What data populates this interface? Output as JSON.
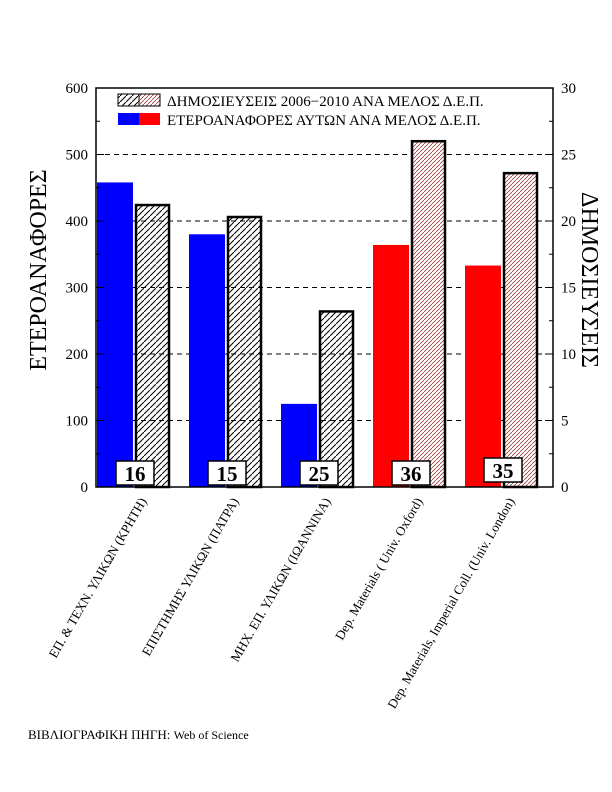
{
  "chart_data": {
    "type": "bar",
    "categories": [
      "ΕΠ. & ΤΕΧΝ. ΥΛΙΚΩΝ (ΚΡΗΤΗ)",
      "ΕΠΙΣΤΗΜΗΣ ΥΛΙΚΩΝ (ΠΑΤΡΑ)",
      "ΜΗΧ. ΕΠ. ΥΛΙΚΩΝ (ΙΩΑΝΝΙΝΑ)",
      "Dep. Materials ( Univ. Oxford)",
      "Dep. Materials, Imperial Coll. (Univ. London)"
    ],
    "series": [
      {
        "name": "ΕΤΕΡΟΑΝΑΦΟΡΕΣ ΑΥΤΩΝ ΑΝΑ ΜΕΛΟΣ Δ.Ε.Π.",
        "axis": "left",
        "values": [
          458,
          380,
          125,
          364,
          333
        ],
        "colors": [
          "#0000ff",
          "#0000ff",
          "#0000ff",
          "#ff0000",
          "#ff0000"
        ]
      },
      {
        "name": "ΔΗΜΟΣΙΕΥΣΕΙΣ 2006−2010 ΑΝΑ ΜΕΛΟΣ Δ.Ε.Π.",
        "axis": "right",
        "values": [
          21.2,
          20.3,
          13.2,
          26.0,
          23.6
        ],
        "hatch_colors": [
          "#000000",
          "#000000",
          "#000000",
          "#a04040",
          "#a04040"
        ]
      }
    ],
    "box_labels": [
      "16",
      "15",
      "25",
      "36",
      "35"
    ],
    "ylabel": "ΕΤΕΡΟΑΝΑΦΟΡΕΣ",
    "y2label": "ΔΗΜΟΣΙΕΥΣΕΙΣ",
    "ylim": [
      0,
      600
    ],
    "y2lim": [
      0,
      30
    ],
    "yticks": [
      0,
      100,
      200,
      300,
      400,
      500,
      600
    ],
    "y2ticks": [
      0,
      5,
      10,
      15,
      20,
      25,
      30
    ],
    "grid": "horizontal dashed",
    "legend": "top"
  },
  "source": {
    "label": "ΒΙΒΛΙΟΓΡΑΦΙΚΗ ΠΗΓΗ:",
    "value": "Web of Science"
  }
}
